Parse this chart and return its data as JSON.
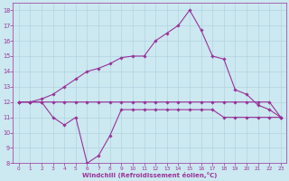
{
  "xlabel": "Windchill (Refroidissement éolien,°C)",
  "x": [
    0,
    1,
    2,
    3,
    4,
    5,
    6,
    7,
    8,
    9,
    10,
    11,
    12,
    13,
    14,
    15,
    16,
    17,
    18,
    19,
    20,
    21,
    22,
    23
  ],
  "line1": [
    12,
    12,
    12,
    12,
    12,
    12,
    12,
    12,
    12,
    12,
    12,
    12,
    12,
    12,
    12,
    12,
    12,
    12,
    12,
    12,
    12,
    12,
    12,
    11
  ],
  "line2": [
    12,
    12,
    12,
    11,
    10.5,
    11,
    8,
    8.5,
    9.8,
    11.5,
    11.5,
    11.5,
    11.5,
    11.5,
    11.5,
    11.5,
    11.5,
    11.5,
    11,
    11,
    11,
    11,
    11,
    11
  ],
  "line3": [
    12,
    12,
    12.2,
    12.5,
    13,
    13.5,
    14,
    14.2,
    14.5,
    14.9,
    15,
    15,
    16,
    16.5,
    17,
    18,
    16.7,
    15,
    14.8,
    12.8,
    12.5,
    11.8,
    11.5,
    11
  ],
  "ylim": [
    8,
    18.5
  ],
  "xlim": [
    -0.5,
    23.5
  ],
  "yticks": [
    8,
    9,
    10,
    11,
    12,
    13,
    14,
    15,
    16,
    17,
    18
  ],
  "xticks": [
    0,
    1,
    2,
    3,
    4,
    5,
    6,
    7,
    8,
    9,
    10,
    11,
    12,
    13,
    14,
    15,
    16,
    17,
    18,
    19,
    20,
    21,
    22,
    23
  ],
  "line_color": "#993399",
  "bg_color": "#cce8f0",
  "grid_color": "#aad0dd",
  "marker": "D",
  "markersize": 1.8,
  "linewidth": 0.8,
  "tick_fontsize": 4.2,
  "xlabel_fontsize": 5.0
}
